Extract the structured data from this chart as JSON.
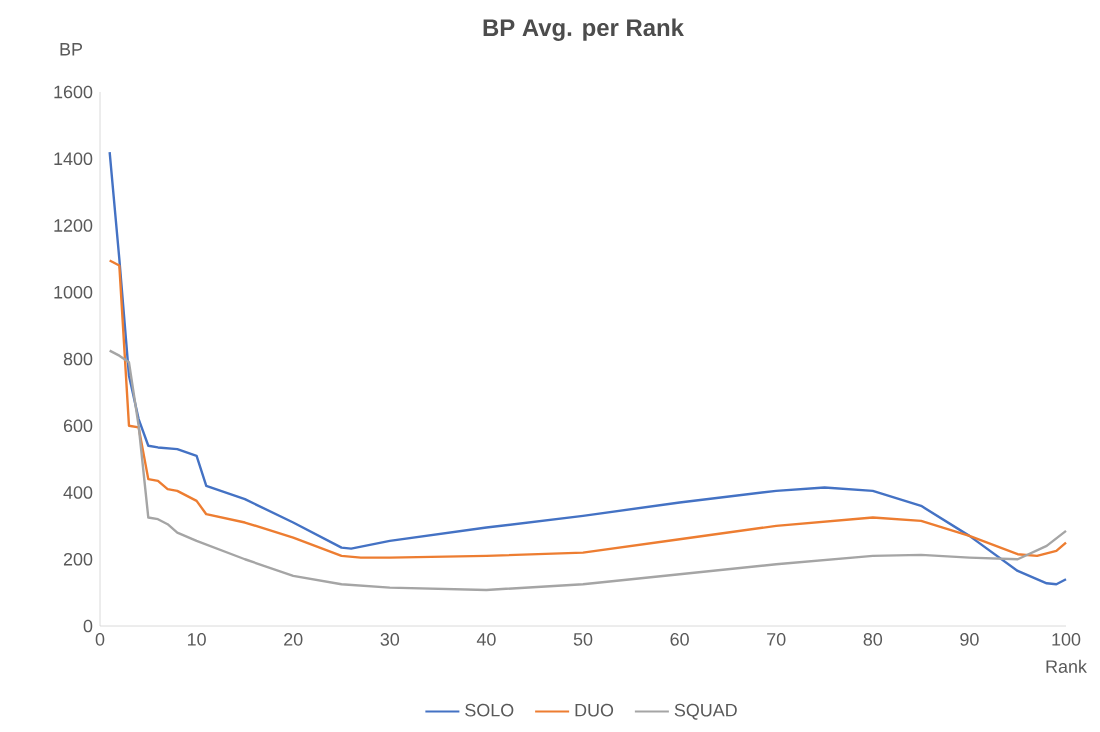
{
  "chart_data": {
    "type": "line",
    "title": "BP Avg. per Rank",
    "xlabel": "Rank",
    "ylabel": "BP",
    "xlim": [
      0,
      100
    ],
    "xticks": [
      0,
      10,
      20,
      30,
      40,
      50,
      60,
      70,
      80,
      90,
      100
    ],
    "ylim": [
      0,
      1600
    ],
    "yticks": [
      0,
      200,
      400,
      600,
      800,
      1000,
      1200,
      1400,
      1600
    ],
    "grid": false,
    "legend": "bottom",
    "marker": "none",
    "line_style": "solid",
    "series": [
      {
        "name": "SOLO",
        "color": "#4472c4",
        "x": [
          1,
          2,
          3,
          4,
          5,
          6,
          8,
          10,
          11,
          15,
          20,
          25,
          26,
          30,
          40,
          50,
          60,
          70,
          75,
          80,
          85,
          90,
          95,
          98,
          99,
          100
        ],
        "values": [
          1420,
          1100,
          750,
          620,
          540,
          535,
          530,
          510,
          420,
          380,
          310,
          235,
          232,
          255,
          295,
          330,
          370,
          405,
          415,
          405,
          360,
          270,
          165,
          128,
          125,
          140
        ]
      },
      {
        "name": "DUO",
        "color": "#ed7d31",
        "x": [
          1,
          2,
          3,
          4,
          5,
          6,
          7,
          8,
          10,
          11,
          15,
          20,
          25,
          27,
          30,
          40,
          50,
          60,
          70,
          80,
          85,
          90,
          95,
          97,
          99,
          100
        ],
        "values": [
          1095,
          1080,
          600,
          595,
          440,
          435,
          410,
          405,
          375,
          335,
          310,
          265,
          210,
          205,
          205,
          210,
          220,
          260,
          300,
          325,
          315,
          270,
          215,
          210,
          225,
          250
        ]
      },
      {
        "name": "SQUAD",
        "color": "#a5a5a5",
        "x": [
          1,
          2,
          3,
          4,
          5,
          6,
          7,
          8,
          10,
          15,
          20,
          25,
          30,
          40,
          50,
          60,
          70,
          80,
          85,
          90,
          95,
          98,
          100
        ],
        "values": [
          825,
          810,
          790,
          600,
          325,
          320,
          305,
          280,
          255,
          200,
          150,
          125,
          115,
          108,
          125,
          155,
          185,
          210,
          213,
          205,
          200,
          240,
          285
        ]
      }
    ]
  }
}
